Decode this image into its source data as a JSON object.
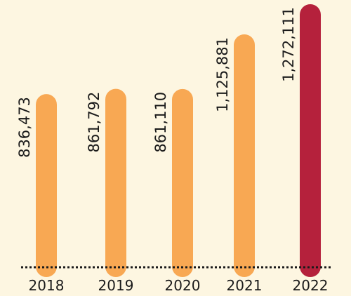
{
  "chart_data": {
    "type": "bar",
    "categories": [
      "2018",
      "2019",
      "2020",
      "2021",
      "2022"
    ],
    "values": [
      836473,
      861792,
      861110,
      1125881,
      1272111
    ],
    "value_labels": [
      "836,473",
      "861,792",
      "861,110",
      "1,125,881",
      "1,272,111"
    ],
    "title": "",
    "xlabel": "",
    "ylabel": "",
    "grid": false,
    "legend": "none",
    "colors": {
      "default": "#f8a853",
      "highlight": "#b5213c",
      "background": "#fdf6e1",
      "baseline": "#1a1a1a"
    },
    "highlight_index": 4
  }
}
